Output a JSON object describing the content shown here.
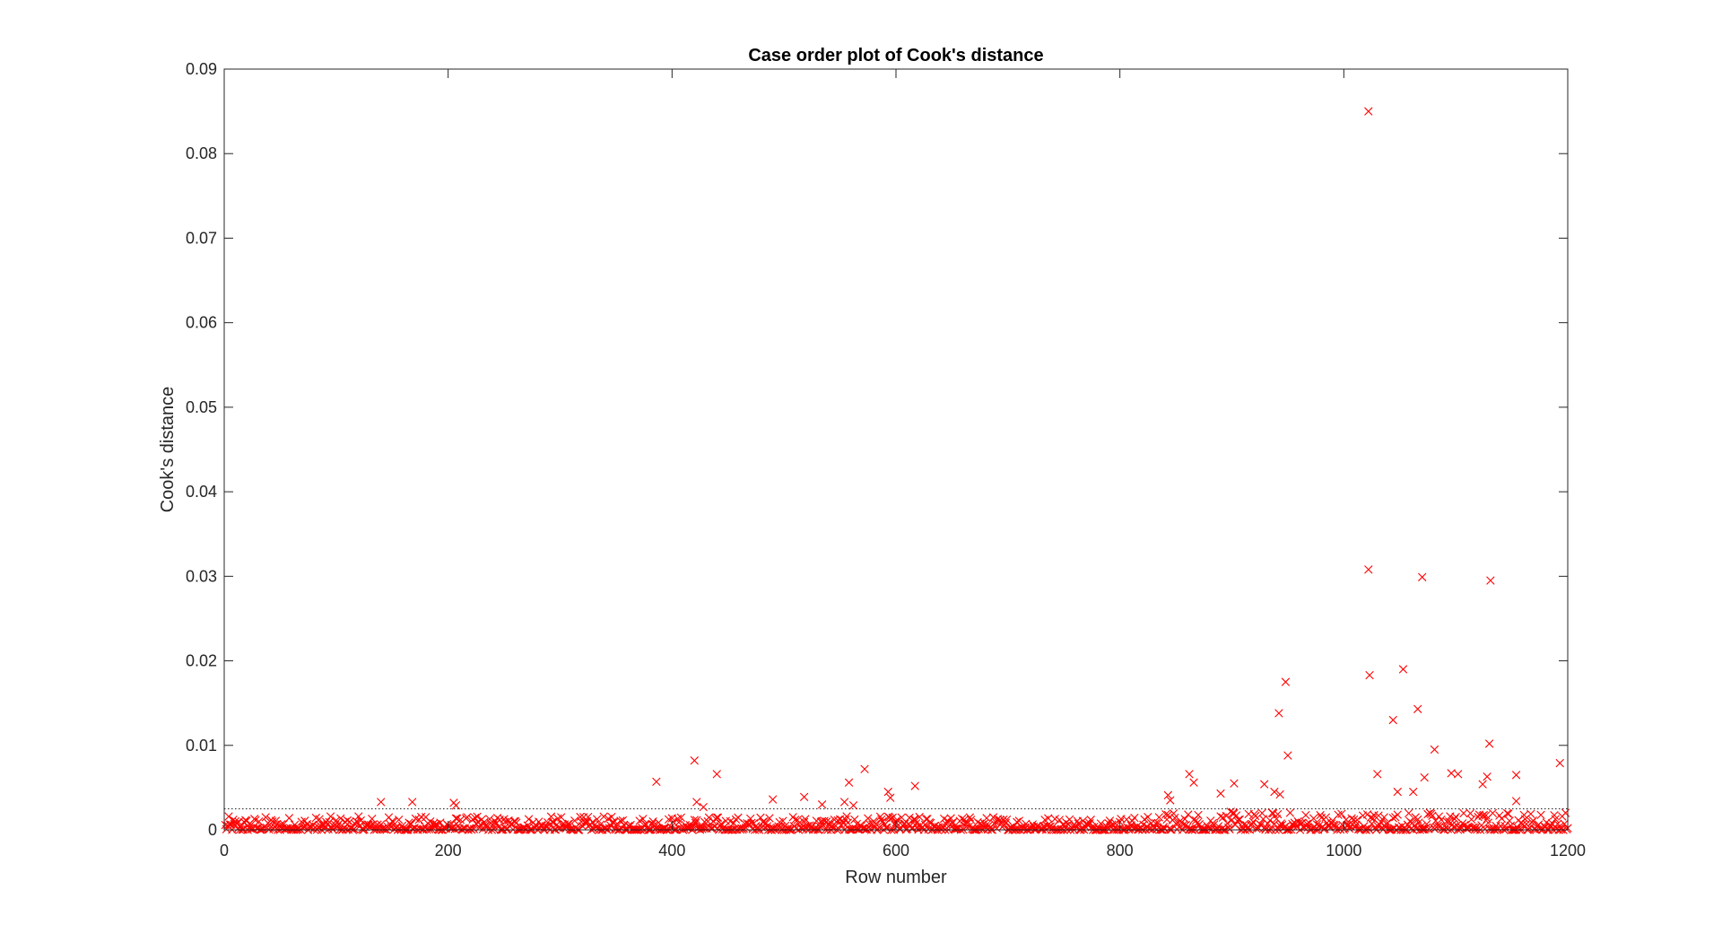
{
  "chart_data": {
    "type": "scatter",
    "title": "Case order plot of Cook's distance",
    "xlabel": "Row number",
    "ylabel": "Cook's distance",
    "xlim": [
      0,
      1200
    ],
    "ylim": [
      0,
      0.09
    ],
    "xticks": [
      "0",
      "200",
      "400",
      "600",
      "800",
      "1000",
      "1200"
    ],
    "xtick_values": [
      0,
      200,
      400,
      600,
      800,
      1000,
      1200
    ],
    "yticks": [
      "0",
      "0.01",
      "0.02",
      "0.03",
      "0.04",
      "0.05",
      "0.06",
      "0.07",
      "0.08",
      "0.09"
    ],
    "ytick_values": [
      0,
      0.01,
      0.02,
      0.03,
      0.04,
      0.05,
      0.06,
      0.07,
      0.08,
      0.09
    ],
    "grid": false,
    "marker": "x",
    "marker_color": "#ff0000",
    "threshold_line": {
      "y": 0.0025,
      "style": "dotted",
      "color": "#000000"
    },
    "points": [
      [
        140,
        0.0033
      ],
      [
        168,
        0.0033
      ],
      [
        205,
        0.0032
      ],
      [
        207,
        0.0029
      ],
      [
        386,
        0.0057
      ],
      [
        420,
        0.0082
      ],
      [
        422,
        0.0033
      ],
      [
        428,
        0.0027
      ],
      [
        440,
        0.0066
      ],
      [
        490,
        0.0036
      ],
      [
        518,
        0.0039
      ],
      [
        534,
        0.003
      ],
      [
        554,
        0.0033
      ],
      [
        558,
        0.0056
      ],
      [
        562,
        0.0029
      ],
      [
        572,
        0.0072
      ],
      [
        593,
        0.0045
      ],
      [
        595,
        0.0038
      ],
      [
        617,
        0.0052
      ],
      [
        843,
        0.0041
      ],
      [
        845,
        0.0035
      ],
      [
        862,
        0.0066
      ],
      [
        866,
        0.0056
      ],
      [
        890,
        0.0043
      ],
      [
        902,
        0.0055
      ],
      [
        929,
        0.0054
      ],
      [
        938,
        0.0045
      ],
      [
        942,
        0.0138
      ],
      [
        943,
        0.0042
      ],
      [
        948,
        0.0175
      ],
      [
        950,
        0.0088
      ],
      [
        1022,
        0.085
      ],
      [
        1022,
        0.0308
      ],
      [
        1023,
        0.0183
      ],
      [
        1030,
        0.0066
      ],
      [
        1044,
        0.013
      ],
      [
        1048,
        0.0045
      ],
      [
        1053,
        0.019
      ],
      [
        1062,
        0.0045
      ],
      [
        1066,
        0.0143
      ],
      [
        1070,
        0.0299
      ],
      [
        1072,
        0.0062
      ],
      [
        1081,
        0.0095
      ],
      [
        1096,
        0.0067
      ],
      [
        1102,
        0.0066
      ],
      [
        1124,
        0.0054
      ],
      [
        1128,
        0.0063
      ],
      [
        1130,
        0.0102
      ],
      [
        1131,
        0.0295
      ],
      [
        1154,
        0.0065
      ],
      [
        1154,
        0.0034
      ],
      [
        1193,
        0.0079
      ]
    ]
  }
}
